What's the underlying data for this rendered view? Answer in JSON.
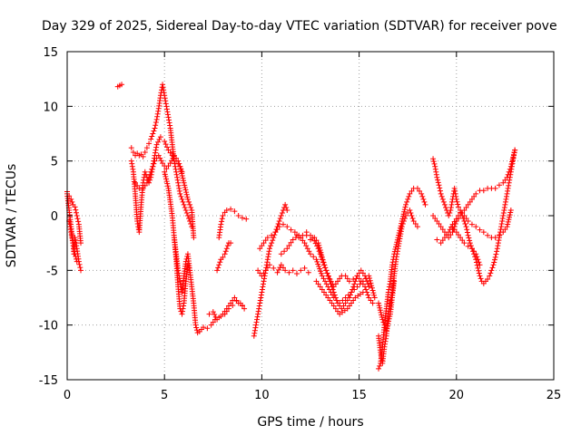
{
  "chart_data": {
    "type": "scatter",
    "title": "Day 329 of 2025, Sidereal Day-to-day VTEC variation (SDTVAR) for receiver pove",
    "xlabel": "GPS time / hours",
    "ylabel": "SDTVAR / TECUs",
    "xlim": [
      0,
      25
    ],
    "ylim": [
      -15,
      15
    ],
    "xticks": [
      0,
      5,
      10,
      15,
      20,
      25
    ],
    "yticks": [
      -15,
      -10,
      -5,
      0,
      5,
      10,
      15
    ],
    "xtick_labels": [
      "0",
      "5",
      "10",
      "15",
      "20",
      "25"
    ],
    "ytick_labels": [
      "-15",
      "-10",
      "-5",
      "0",
      "5",
      "10",
      "15"
    ],
    "grid": true,
    "marker": "+",
    "color": "#ff0000",
    "series": [
      {
        "name": "s1",
        "x": [
          0.0,
          0.1,
          0.2,
          0.3,
          0.35,
          0.4,
          0.5,
          0.6,
          0.7
        ],
        "y": [
          2.0,
          0.5,
          -1.0,
          -2.5,
          -3.5,
          -2.0,
          -3.0,
          -4.2,
          -5.0
        ]
      },
      {
        "name": "s2",
        "x": [
          0.0,
          0.1,
          0.2,
          0.3,
          0.4,
          0.5,
          0.6,
          0.7
        ],
        "y": [
          2.2,
          1.8,
          1.5,
          1.0,
          0.8,
          0.0,
          -0.8,
          -2.5
        ]
      },
      {
        "name": "s3",
        "x": [
          0.1,
          0.2,
          0.3,
          0.4,
          0.5
        ],
        "y": [
          -0.5,
          -1.5,
          -2.5,
          -3.5,
          -4.2
        ]
      },
      {
        "name": "s4",
        "x": [
          2.6,
          2.7,
          2.8
        ],
        "y": [
          11.8,
          11.9,
          12.0
        ]
      },
      {
        "name": "s5",
        "x": [
          3.3,
          3.4,
          3.5,
          3.6,
          3.7,
          3.8,
          3.9,
          4.0,
          4.1,
          4.2,
          4.3,
          4.4,
          4.5,
          4.6,
          4.7,
          4.8,
          4.9,
          5.0,
          5.1,
          5.2,
          5.3,
          5.4,
          5.5,
          5.6,
          5.7,
          5.8,
          6.0,
          6.2,
          6.4
        ],
        "y": [
          6.2,
          5.8,
          5.5,
          5.7,
          5.5,
          5.6,
          5.4,
          5.8,
          6.2,
          6.6,
          7.0,
          7.5,
          8.0,
          8.8,
          9.8,
          11.0,
          12.0,
          11.0,
          10.0,
          9.0,
          8.0,
          6.5,
          5.0,
          4.0,
          3.0,
          2.0,
          1.0,
          0.0,
          -1.0
        ]
      },
      {
        "name": "s6",
        "x": [
          3.3,
          3.4,
          3.5,
          3.6,
          3.7,
          3.8,
          3.9,
          4.0,
          4.1,
          4.2,
          4.3,
          4.4,
          4.5,
          4.6,
          4.8,
          5.0,
          5.2,
          5.4,
          5.6,
          5.8,
          6.0,
          6.2,
          6.4,
          6.5
        ],
        "y": [
          5.0,
          4.0,
          2.0,
          -0.5,
          -1.5,
          1.0,
          3.0,
          4.0,
          3.5,
          3.0,
          3.5,
          4.5,
          5.5,
          6.5,
          7.2,
          6.8,
          6.0,
          5.5,
          5.0,
          4.5,
          3.0,
          1.5,
          0.5,
          -2.0
        ]
      },
      {
        "name": "s7",
        "x": [
          3.5,
          3.7,
          3.9,
          4.1,
          4.3,
          4.5,
          4.7,
          4.9,
          5.1,
          5.3,
          5.5,
          5.7,
          5.9
        ],
        "y": [
          3.0,
          2.5,
          2.5,
          3.0,
          4.0,
          5.0,
          5.5,
          4.8,
          4.3,
          4.8,
          5.5,
          5.0,
          4.0
        ]
      },
      {
        "name": "s8",
        "x": [
          5.0,
          5.2,
          5.4,
          5.5,
          5.6,
          5.7,
          5.8,
          5.9,
          6.0,
          6.1,
          6.2,
          6.3,
          6.4,
          6.5,
          6.6,
          6.7,
          6.8,
          6.9,
          7.0,
          7.2,
          7.4,
          7.6,
          7.8,
          8.0,
          8.2,
          8.4,
          8.6,
          8.8,
          9.0
        ],
        "y": [
          4.0,
          2.5,
          0.0,
          -2.0,
          -4.0,
          -6.5,
          -8.5,
          -9.0,
          -8.0,
          -6.0,
          -4.5,
          -5.0,
          -6.5,
          -8.0,
          -10.0,
          -10.7,
          -10.6,
          -10.4,
          -10.2,
          -10.3,
          -10.0,
          -9.5,
          -9.3,
          -9.0,
          -8.5,
          -8.0,
          -7.5,
          -8.0,
          -8.2
        ]
      },
      {
        "name": "s9",
        "x": [
          5.5,
          5.6,
          5.7,
          5.8,
          5.9,
          6.0,
          6.1,
          6.2,
          6.3
        ],
        "y": [
          -2.0,
          -3.5,
          -5.0,
          -6.0,
          -7.0,
          -5.5,
          -4.2,
          -3.5,
          -5.0
        ]
      },
      {
        "name": "s10",
        "x": [
          7.8,
          7.9,
          8.0,
          8.1,
          8.2,
          8.4,
          8.6,
          8.8,
          9.0,
          9.2
        ],
        "y": [
          -2.0,
          -0.8,
          0.0,
          0.3,
          0.5,
          0.6,
          0.4,
          0.0,
          -0.2,
          -0.3
        ]
      },
      {
        "name": "s11",
        "x": [
          7.7,
          7.8,
          7.9,
          8.0,
          8.1,
          8.2,
          8.3,
          8.4
        ],
        "y": [
          -5.0,
          -4.5,
          -4.0,
          -3.8,
          -3.5,
          -3.0,
          -2.5,
          -2.5
        ]
      },
      {
        "name": "s12",
        "x": [
          7.3,
          7.5,
          7.7,
          7.9,
          8.1,
          8.3,
          8.5,
          8.7,
          8.9,
          9.1
        ],
        "y": [
          -9.0,
          -8.8,
          -9.5,
          -9.2,
          -9.0,
          -8.5,
          -8.2,
          -7.8,
          -8.0,
          -8.5
        ]
      },
      {
        "name": "s13",
        "x": [
          9.6,
          9.7,
          9.8,
          9.9,
          10.0,
          10.1,
          10.2,
          10.3,
          10.4,
          10.5,
          10.6,
          10.7,
          10.8,
          10.9,
          11.0,
          11.1,
          11.2,
          11.3
        ],
        "y": [
          -11.0,
          -10.0,
          -9.0,
          -8.0,
          -7.0,
          -6.0,
          -5.0,
          -4.0,
          -3.0,
          -2.5,
          -2.0,
          -1.5,
          -1.0,
          -0.5,
          0.0,
          0.5,
          1.0,
          0.5
        ]
      },
      {
        "name": "s14",
        "x": [
          9.8,
          10.0,
          10.2,
          10.4,
          10.6,
          10.8,
          11.0,
          11.2,
          11.4,
          11.6,
          11.8,
          12.0,
          12.2,
          12.4
        ],
        "y": [
          -5.0,
          -5.5,
          -5.0,
          -4.5,
          -4.8,
          -5.2,
          -4.5,
          -5.0,
          -5.2,
          -5.0,
          -5.3,
          -5.0,
          -4.8,
          -5.2
        ]
      },
      {
        "name": "s15",
        "x": [
          9.9,
          10.1,
          10.3,
          10.5,
          10.7,
          10.9,
          11.1,
          11.3,
          11.5,
          11.7,
          11.9,
          12.1,
          12.3,
          12.5,
          12.7,
          12.9,
          13.1,
          13.3,
          13.5,
          13.7,
          13.9,
          14.1,
          14.3,
          14.5,
          14.7,
          14.9,
          15.1,
          15.3,
          15.5
        ],
        "y": [
          -3.0,
          -2.5,
          -2.0,
          -1.8,
          -1.5,
          -1.0,
          -0.8,
          -1.0,
          -1.3,
          -1.5,
          -2.0,
          -1.8,
          -1.5,
          -1.8,
          -2.3,
          -3.0,
          -4.0,
          -5.0,
          -6.0,
          -7.0,
          -8.0,
          -8.5,
          -8.0,
          -7.5,
          -6.5,
          -5.5,
          -5.0,
          -5.5,
          -6.5
        ]
      },
      {
        "name": "s16",
        "x": [
          11.0,
          11.3,
          11.6,
          11.9,
          12.2,
          12.5,
          12.8,
          13.1,
          13.4,
          13.7,
          14.0,
          14.3,
          14.6,
          14.9,
          15.2,
          15.5,
          15.8
        ],
        "y": [
          -3.5,
          -3.0,
          -2.2,
          -1.8,
          -2.5,
          -3.5,
          -4.0,
          -5.5,
          -6.5,
          -7.5,
          -8.0,
          -7.5,
          -7.0,
          -6.5,
          -6.0,
          -5.5,
          -7.5
        ]
      },
      {
        "name": "s17",
        "x": [
          12.3,
          12.5,
          12.7,
          12.9,
          13.1,
          13.3,
          13.5,
          13.7,
          13.9,
          14.1,
          14.3,
          14.5,
          14.7,
          14.9,
          15.1,
          15.3,
          15.5,
          15.7
        ],
        "y": [
          -1.8,
          -2.2,
          -2.0,
          -2.5,
          -3.8,
          -5.0,
          -5.8,
          -6.5,
          -6.0,
          -5.5,
          -5.5,
          -6.0,
          -5.8,
          -5.5,
          -6.0,
          -6.5,
          -7.5,
          -8.0
        ]
      },
      {
        "name": "s18",
        "x": [
          12.8,
          13.2,
          13.6,
          14.0,
          14.4,
          14.8,
          15.2
        ],
        "y": [
          -6.0,
          -7.0,
          -8.0,
          -9.0,
          -8.5,
          -7.5,
          -7.0
        ]
      },
      {
        "name": "s19",
        "x": [
          16.0,
          16.1,
          16.2,
          16.3,
          16.4,
          16.5,
          16.6,
          16.7,
          16.8,
          17.0,
          17.2,
          17.4,
          17.6,
          17.8,
          18.0,
          18.2,
          18.4
        ],
        "y": [
          -14.0,
          -13.5,
          -12.0,
          -10.0,
          -8.5,
          -7.0,
          -6.0,
          -4.5,
          -3.5,
          -2.0,
          -0.5,
          1.0,
          2.0,
          2.5,
          2.5,
          2.0,
          1.0
        ]
      },
      {
        "name": "s20",
        "x": [
          16.0,
          16.1,
          16.2,
          16.3,
          16.4,
          16.5,
          16.6,
          16.7,
          16.8,
          16.9,
          17.0,
          17.2,
          17.4,
          17.6,
          17.8,
          18.0
        ],
        "y": [
          -11.0,
          -12.5,
          -13.5,
          -12.0,
          -11.0,
          -9.0,
          -8.0,
          -7.0,
          -5.5,
          -4.0,
          -3.0,
          -1.0,
          0.0,
          0.5,
          -0.5,
          -1.0
        ]
      },
      {
        "name": "s21",
        "x": [
          16.0,
          16.2,
          16.4,
          16.6,
          16.8
        ],
        "y": [
          -8.0,
          -9.5,
          -10.5,
          -9.0,
          -6.0
        ]
      },
      {
        "name": "s22",
        "x": [
          18.8,
          18.9,
          19.0,
          19.1,
          19.2,
          19.3,
          19.4,
          19.5,
          19.6,
          19.7,
          19.8,
          19.9,
          20.0,
          20.1,
          20.2,
          20.3,
          20.4,
          20.5,
          20.6,
          20.7,
          20.8,
          20.9,
          21.0,
          21.1,
          21.2,
          21.3,
          21.4,
          21.5,
          21.6,
          21.7,
          21.8,
          21.9,
          22.0,
          22.1,
          22.2,
          22.3,
          22.4,
          22.5,
          22.6,
          22.7,
          22.8,
          22.9,
          23.0
        ],
        "y": [
          5.2,
          4.5,
          3.5,
          2.8,
          2.0,
          1.5,
          1.0,
          0.5,
          0.0,
          0.5,
          1.5,
          2.5,
          1.5,
          0.8,
          0.5,
          0.0,
          -0.5,
          -1.0,
          -1.8,
          -2.5,
          -3.0,
          -3.5,
          -4.0,
          -4.8,
          -5.5,
          -6.0,
          -6.2,
          -6.0,
          -5.8,
          -5.5,
          -5.0,
          -4.5,
          -3.8,
          -3.0,
          -2.0,
          -1.0,
          0.0,
          1.0,
          2.0,
          3.0,
          4.0,
          5.0,
          6.0
        ]
      },
      {
        "name": "s23",
        "x": [
          18.8,
          19.0,
          19.2,
          19.4,
          19.6,
          19.8,
          20.0,
          20.2,
          20.4,
          20.6,
          20.8,
          21.0,
          21.2,
          21.4,
          21.6,
          21.8,
          22.0,
          22.2,
          22.4,
          22.6,
          22.8,
          23.0
        ],
        "y": [
          0.0,
          -0.5,
          -1.0,
          -1.5,
          -2.0,
          -1.5,
          -0.5,
          0.0,
          0.5,
          1.0,
          1.5,
          2.0,
          2.3,
          2.3,
          2.5,
          2.5,
          2.5,
          2.8,
          3.0,
          3.5,
          4.5,
          6.0
        ]
      },
      {
        "name": "s24",
        "x": [
          19.0,
          19.2,
          19.4,
          19.6,
          19.8,
          20.0,
          20.2,
          20.4,
          20.6,
          20.8,
          21.0,
          21.2,
          21.4,
          21.6,
          21.8,
          22.0,
          22.2,
          22.4,
          22.6,
          22.8
        ],
        "y": [
          -2.2,
          -2.5,
          -2.0,
          -1.5,
          -0.8,
          -0.3,
          0.3,
          0.0,
          -0.5,
          -0.8,
          -1.0,
          -1.3,
          -1.5,
          -1.8,
          -2.0,
          -2.0,
          -1.8,
          -1.5,
          -1.0,
          0.5
        ]
      },
      {
        "name": "s25",
        "x": [
          19.8,
          20.0,
          20.2,
          20.4,
          20.6,
          20.8,
          21.0,
          21.2
        ],
        "y": [
          -1.0,
          -1.5,
          -2.0,
          -2.5,
          -2.8,
          -3.0,
          -3.5,
          -4.5
        ]
      }
    ]
  }
}
